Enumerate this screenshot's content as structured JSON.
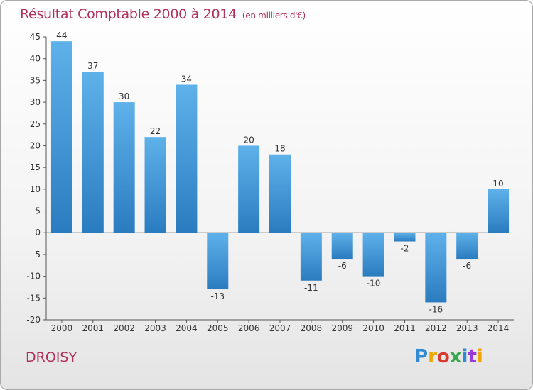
{
  "header": {
    "title": "Résultat Comptable 2000 à 2014",
    "subtitle": "(en milliers d'€)"
  },
  "footer": {
    "commune": "DROISY",
    "logo_text": "Proxiti",
    "logo_colors": [
      "#2e8bd6",
      "#f0a500",
      "#d93a2f",
      "#3aa84c",
      "#2e8bd6",
      "#9b3ad6",
      "#f0a500"
    ]
  },
  "colors": {
    "title": "#b0305c",
    "bar_top": "#5fb1ea",
    "bar_bottom": "#2a7cc0"
  },
  "chart_data": {
    "type": "bar",
    "title": "Résultat Comptable 2000 à 2014",
    "subtitle": "(en milliers d'€)",
    "xlabel": "",
    "ylabel": "",
    "categories": [
      "2000",
      "2001",
      "2002",
      "2003",
      "2004",
      "2005",
      "2006",
      "2007",
      "2008",
      "2009",
      "2010",
      "2011",
      "2012",
      "2013",
      "2014"
    ],
    "values": [
      44,
      37,
      30,
      22,
      34,
      -13,
      20,
      18,
      -11,
      -6,
      -10,
      -2,
      -16,
      -6,
      10
    ],
    "ylim": [
      -20,
      45
    ],
    "yticks": [
      -20,
      -15,
      -10,
      -5,
      0,
      5,
      10,
      15,
      20,
      25,
      30,
      35,
      40,
      45
    ],
    "grid": false,
    "legend": "none"
  }
}
